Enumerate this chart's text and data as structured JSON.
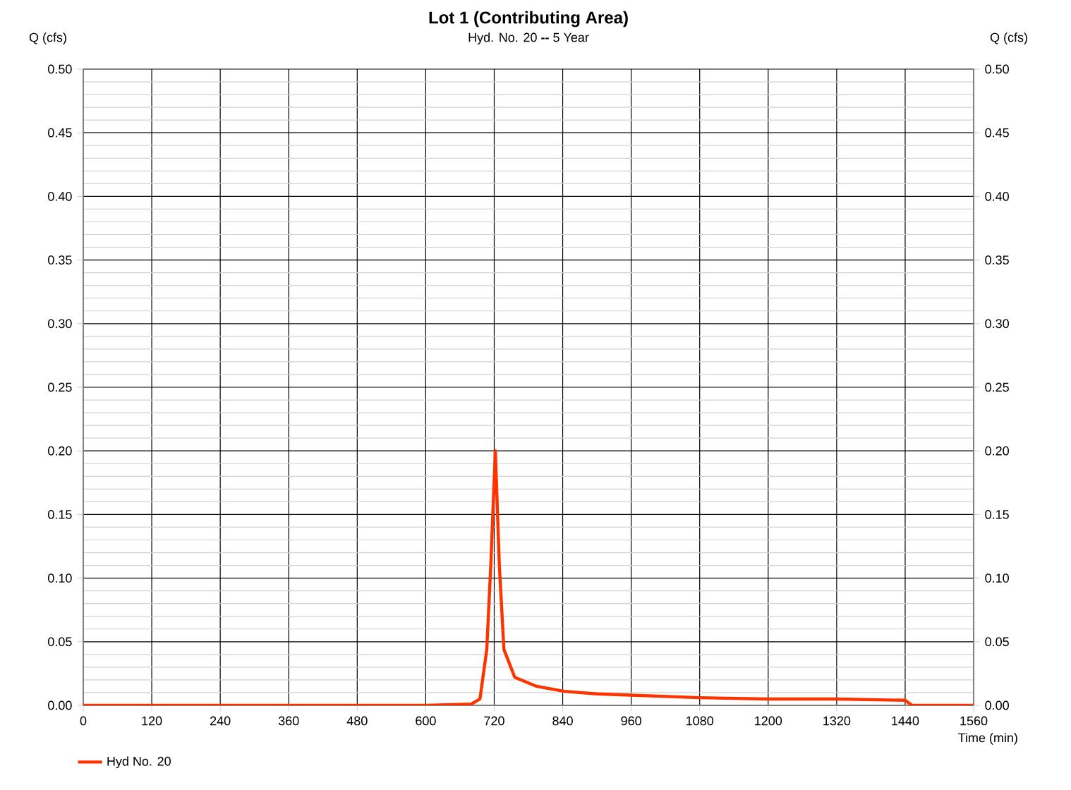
{
  "chart_data": {
    "type": "line",
    "title": "Lot 1 (Contributing Area)",
    "subtitle": "Hyd. No. 20 **--** 5 Year",
    "xlabel": "Time (min)",
    "ylabel": "Q (cfs)",
    "y2label": "Q (cfs)",
    "x": [
      0,
      600,
      680,
      695,
      707,
      714,
      722,
      729,
      737,
      756,
      794,
      843,
      900,
      960,
      1080,
      1200,
      1320,
      1440,
      1452,
      1560
    ],
    "series": [
      {
        "name": "Hyd No. 20",
        "color": "#ff3300",
        "values": [
          0,
          0,
          0.001,
          0.005,
          0.044,
          0.11,
          0.2,
          0.11,
          0.044,
          0.022,
          0.015,
          0.011,
          0.009,
          0.008,
          0.006,
          0.005,
          0.005,
          0.004,
          0,
          0
        ]
      }
    ],
    "xlim": [
      0,
      1560
    ],
    "xticks": [
      0,
      120,
      240,
      360,
      480,
      600,
      720,
      840,
      960,
      1080,
      1200,
      1320,
      1440,
      1560
    ],
    "ylim": [
      0,
      0.5
    ],
    "yticks": [
      {
        "value": 0,
        "label": "0.00"
      },
      {
        "value": 0.05,
        "label": "0.05"
      },
      {
        "value": 0.1,
        "label": "0.10"
      },
      {
        "value": 0.15,
        "label": "0.15"
      },
      {
        "value": 0.2,
        "label": "0.20"
      },
      {
        "value": 0.25,
        "label": "0.25"
      },
      {
        "value": 0.3,
        "label": "0.30"
      },
      {
        "value": 0.35,
        "label": "0.35"
      },
      {
        "value": 0.4,
        "label": "0.40"
      },
      {
        "value": 0.45,
        "label": "0.45"
      },
      {
        "value": 0.5,
        "label": "0.50"
      }
    ],
    "y2lim": [
      0,
      0.5
    ],
    "y2ticks": [
      {
        "value": 0,
        "label": "0.00"
      },
      {
        "value": 0.05,
        "label": "0.05"
      },
      {
        "value": 0.1,
        "label": "0.10"
      },
      {
        "value": 0.15,
        "label": "0.15"
      },
      {
        "value": 0.2,
        "label": "0.20"
      },
      {
        "value": 0.25,
        "label": "0.25"
      },
      {
        "value": 0.3,
        "label": "0.30"
      },
      {
        "value": 0.35,
        "label": "0.35"
      },
      {
        "value": 0.4,
        "label": "0.40"
      },
      {
        "value": 0.45,
        "label": "0.45"
      },
      {
        "value": 0.5,
        "label": "0.50"
      }
    ],
    "grid": true,
    "legend": "bottom left",
    "marker": "none",
    "line_style": "solid"
  }
}
